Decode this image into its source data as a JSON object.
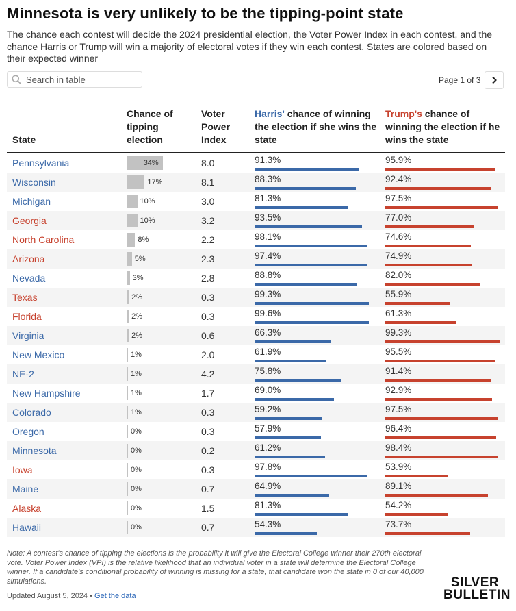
{
  "title": "Minnesota is very unlikely to be the tipping-point state",
  "subtitle": "The chance each contest will decide the 2024 presidential election, the Voter Power Index in each contest, and the chance Harris or Trump will win a majority of electoral votes if they win each contest. States are colored based on their expected winner",
  "search": {
    "placeholder": "Search in table"
  },
  "pager": {
    "text": "Page 1 of 3"
  },
  "colors": {
    "dem": "#3b69a8",
    "rep": "#c7422e",
    "bar_gray": "#c2c2c2"
  },
  "headers": {
    "state": "State",
    "tipping": "Chance of tipping election",
    "vpi": "Voter Power Index",
    "harris_name": "Harris'",
    "harris_rest": " chance of winning the election if she wins the state",
    "trump_name": "Trump's",
    "trump_rest": " chance of winning the election if he wins the state"
  },
  "chart_data": {
    "type": "table",
    "columns": [
      "State",
      "Chance of tipping election",
      "Voter Power Index",
      "Harris' chance of winning the election if she wins the state",
      "Trump's chance of winning the election if he wins the state"
    ],
    "rows": [
      {
        "state": "Pennsylvania",
        "party": "dem",
        "tipping": 34,
        "vpi": "8.0",
        "harris": "91.3%",
        "trump": "95.9%"
      },
      {
        "state": "Wisconsin",
        "party": "dem",
        "tipping": 17,
        "vpi": "8.1",
        "harris": "88.3%",
        "trump": "92.4%"
      },
      {
        "state": "Michigan",
        "party": "dem",
        "tipping": 10,
        "vpi": "3.0",
        "harris": "81.3%",
        "trump": "97.5%"
      },
      {
        "state": "Georgia",
        "party": "rep",
        "tipping": 10,
        "vpi": "3.2",
        "harris": "93.5%",
        "trump": "77.0%"
      },
      {
        "state": "North Carolina",
        "party": "rep",
        "tipping": 8,
        "vpi": "2.2",
        "harris": "98.1%",
        "trump": "74.6%"
      },
      {
        "state": "Arizona",
        "party": "rep",
        "tipping": 5,
        "vpi": "2.3",
        "harris": "97.4%",
        "trump": "74.9%"
      },
      {
        "state": "Nevada",
        "party": "dem",
        "tipping": 3,
        "vpi": "2.8",
        "harris": "88.8%",
        "trump": "82.0%"
      },
      {
        "state": "Texas",
        "party": "rep",
        "tipping": 2,
        "vpi": "0.3",
        "harris": "99.3%",
        "trump": "55.9%"
      },
      {
        "state": "Florida",
        "party": "rep",
        "tipping": 2,
        "vpi": "0.3",
        "harris": "99.6%",
        "trump": "61.3%"
      },
      {
        "state": "Virginia",
        "party": "dem",
        "tipping": 2,
        "vpi": "0.6",
        "harris": "66.3%",
        "trump": "99.3%"
      },
      {
        "state": "New Mexico",
        "party": "dem",
        "tipping": 1,
        "vpi": "2.0",
        "harris": "61.9%",
        "trump": "95.5%"
      },
      {
        "state": "NE-2",
        "party": "dem",
        "tipping": 1,
        "vpi": "4.2",
        "harris": "75.8%",
        "trump": "91.4%"
      },
      {
        "state": "New Hampshire",
        "party": "dem",
        "tipping": 1,
        "vpi": "1.7",
        "harris": "69.0%",
        "trump": "92.9%"
      },
      {
        "state": "Colorado",
        "party": "dem",
        "tipping": 1,
        "vpi": "0.3",
        "harris": "59.2%",
        "trump": "97.5%"
      },
      {
        "state": "Oregon",
        "party": "dem",
        "tipping": 0,
        "vpi": "0.3",
        "harris": "57.9%",
        "trump": "96.4%"
      },
      {
        "state": "Minnesota",
        "party": "dem",
        "tipping": 0,
        "vpi": "0.2",
        "harris": "61.2%",
        "trump": "98.4%"
      },
      {
        "state": "Iowa",
        "party": "rep",
        "tipping": 0,
        "vpi": "0.3",
        "harris": "97.8%",
        "trump": "53.9%"
      },
      {
        "state": "Maine",
        "party": "dem",
        "tipping": 0,
        "vpi": "0.7",
        "harris": "64.9%",
        "trump": "89.1%"
      },
      {
        "state": "Alaska",
        "party": "rep",
        "tipping": 0,
        "vpi": "1.5",
        "harris": "81.3%",
        "trump": "54.2%"
      },
      {
        "state": "Hawaii",
        "party": "dem",
        "tipping": 0,
        "vpi": "0.7",
        "harris": "54.3%",
        "trump": "73.7%"
      }
    ]
  },
  "note": "Note: A contest's chance of tipping the elections is the probability it will give the Electoral College winner their 270th electoral vote. Voter Power Index (VPI) is the relative likelihood that an individual voter in a state will determine the Electoral College winner. If a candidate's conditional probability of winning is missing for a state, that candidate won the state in 0 of our 40,000 simulations.",
  "footer": {
    "updated": "Updated August 5, 2024 • ",
    "link": "Get the data"
  },
  "logo": {
    "line1": "SILVER",
    "line2": "BULLETIN"
  }
}
